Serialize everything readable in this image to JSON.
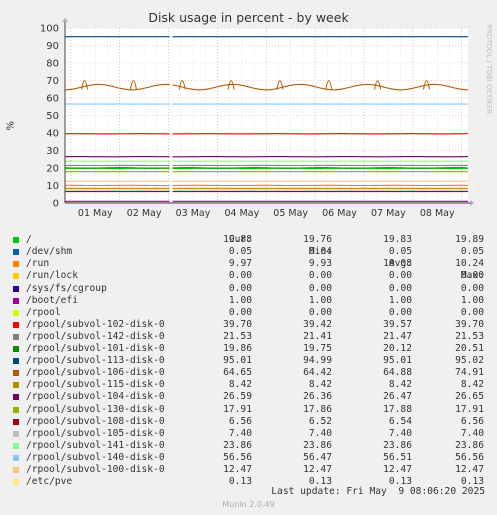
{
  "window_title": "Disk usage in percent - by week",
  "side_label": "RRDTOOL / TOBI OETIKER",
  "footer": "Munin 2.0.49",
  "last_update": "Last update: Fri May  9 08:06:20 2025",
  "legend_headers": {
    "cur": "Cur:",
    "min": "Min:",
    "avg": "Avg:",
    "max": "Max:"
  },
  "chart_data": {
    "type": "line",
    "title": "Disk usage in percent - by week",
    "ylabel": "%",
    "xlabel": "",
    "ylim": [
      0,
      100
    ],
    "yticks": [
      0,
      10,
      20,
      30,
      40,
      50,
      60,
      70,
      80,
      90,
      100
    ],
    "x_categories": [
      "01 May",
      "02 May",
      "03 May",
      "04 May",
      "05 May",
      "06 May",
      "07 May",
      "08 May"
    ],
    "grid": true,
    "legend_placement": "bottom",
    "series": [
      {
        "name": "/",
        "color": "#00cc00",
        "cur": "19.88",
        "min": "19.76",
        "avg": "19.83",
        "max": "19.89"
      },
      {
        "name": "/dev/shm",
        "color": "#0066b3",
        "cur": "0.05",
        "min": "0.04",
        "avg": "0.05",
        "max": "0.05"
      },
      {
        "name": "/run",
        "color": "#ff8000",
        "cur": "9.97",
        "min": "9.93",
        "avg": "10.08",
        "max": "10.24"
      },
      {
        "name": "/run/lock",
        "color": "#ffcc00",
        "cur": "0.00",
        "min": "0.00",
        "avg": "0.00",
        "max": "0.00"
      },
      {
        "name": "/sys/fs/cgroup",
        "color": "#330099",
        "cur": "0.00",
        "min": "0.00",
        "avg": "0.00",
        "max": "0.00"
      },
      {
        "name": "/boot/efi",
        "color": "#990099",
        "cur": "1.00",
        "min": "1.00",
        "avg": "1.00",
        "max": "1.00"
      },
      {
        "name": "/rpool",
        "color": "#ccff00",
        "cur": "0.00",
        "min": "0.00",
        "avg": "0.00",
        "max": "0.00"
      },
      {
        "name": "/rpool/subvol-102-disk-0",
        "color": "#ff0000",
        "cur": "39.70",
        "min": "39.42",
        "avg": "39.57",
        "max": "39.70"
      },
      {
        "name": "/rpool/subvol-142-disk-0",
        "color": "#808080",
        "cur": "21.53",
        "min": "21.41",
        "avg": "21.47",
        "max": "21.53"
      },
      {
        "name": "/rpool/subvol-101-disk-0",
        "color": "#008f00",
        "cur": "19.86",
        "min": "19.75",
        "avg": "20.12",
        "max": "20.51"
      },
      {
        "name": "/rpool/subvol-113-disk-0",
        "color": "#00487d",
        "cur": "95.01",
        "min": "94.99",
        "avg": "95.01",
        "max": "95.02"
      },
      {
        "name": "/rpool/subvol-106-disk-0",
        "color": "#b35a00",
        "cur": "64.65",
        "min": "64.42",
        "avg": "64.88",
        "max": "74.91"
      },
      {
        "name": "/rpool/subvol-115-disk-0",
        "color": "#b38f00",
        "cur": "8.42",
        "min": "8.42",
        "avg": "8.42",
        "max": "8.42"
      },
      {
        "name": "/rpool/subvol-104-disk-0",
        "color": "#6b006b",
        "cur": "26.59",
        "min": "26.36",
        "avg": "26.47",
        "max": "26.65"
      },
      {
        "name": "/rpool/subvol-130-disk-0",
        "color": "#8fb300",
        "cur": "17.91",
        "min": "17.86",
        "avg": "17.88",
        "max": "17.91"
      },
      {
        "name": "/rpool/subvol-108-disk-0",
        "color": "#b30000",
        "cur": "6.56",
        "min": "6.52",
        "avg": "6.54",
        "max": "6.56"
      },
      {
        "name": "/rpool/subvol-105-disk-0",
        "color": "#bebebe",
        "cur": "7.40",
        "min": "7.40",
        "avg": "7.40",
        "max": "7.40"
      },
      {
        "name": "/rpool/subvol-141-disk-0",
        "color": "#80ff80",
        "cur": "23.86",
        "min": "23.86",
        "avg": "23.86",
        "max": "23.86"
      },
      {
        "name": "/rpool/subvol-140-disk-0",
        "color": "#80c9ff",
        "cur": "56.56",
        "min": "56.47",
        "avg": "56.51",
        "max": "56.56"
      },
      {
        "name": "/rpool/subvol-100-disk-0",
        "color": "#ffc080",
        "cur": "12.47",
        "min": "12.47",
        "avg": "12.47",
        "max": "12.47"
      },
      {
        "name": "/etc/pve",
        "color": "#ffe680",
        "cur": "0.13",
        "min": "0.13",
        "avg": "0.13",
        "max": "0.13"
      }
    ]
  }
}
